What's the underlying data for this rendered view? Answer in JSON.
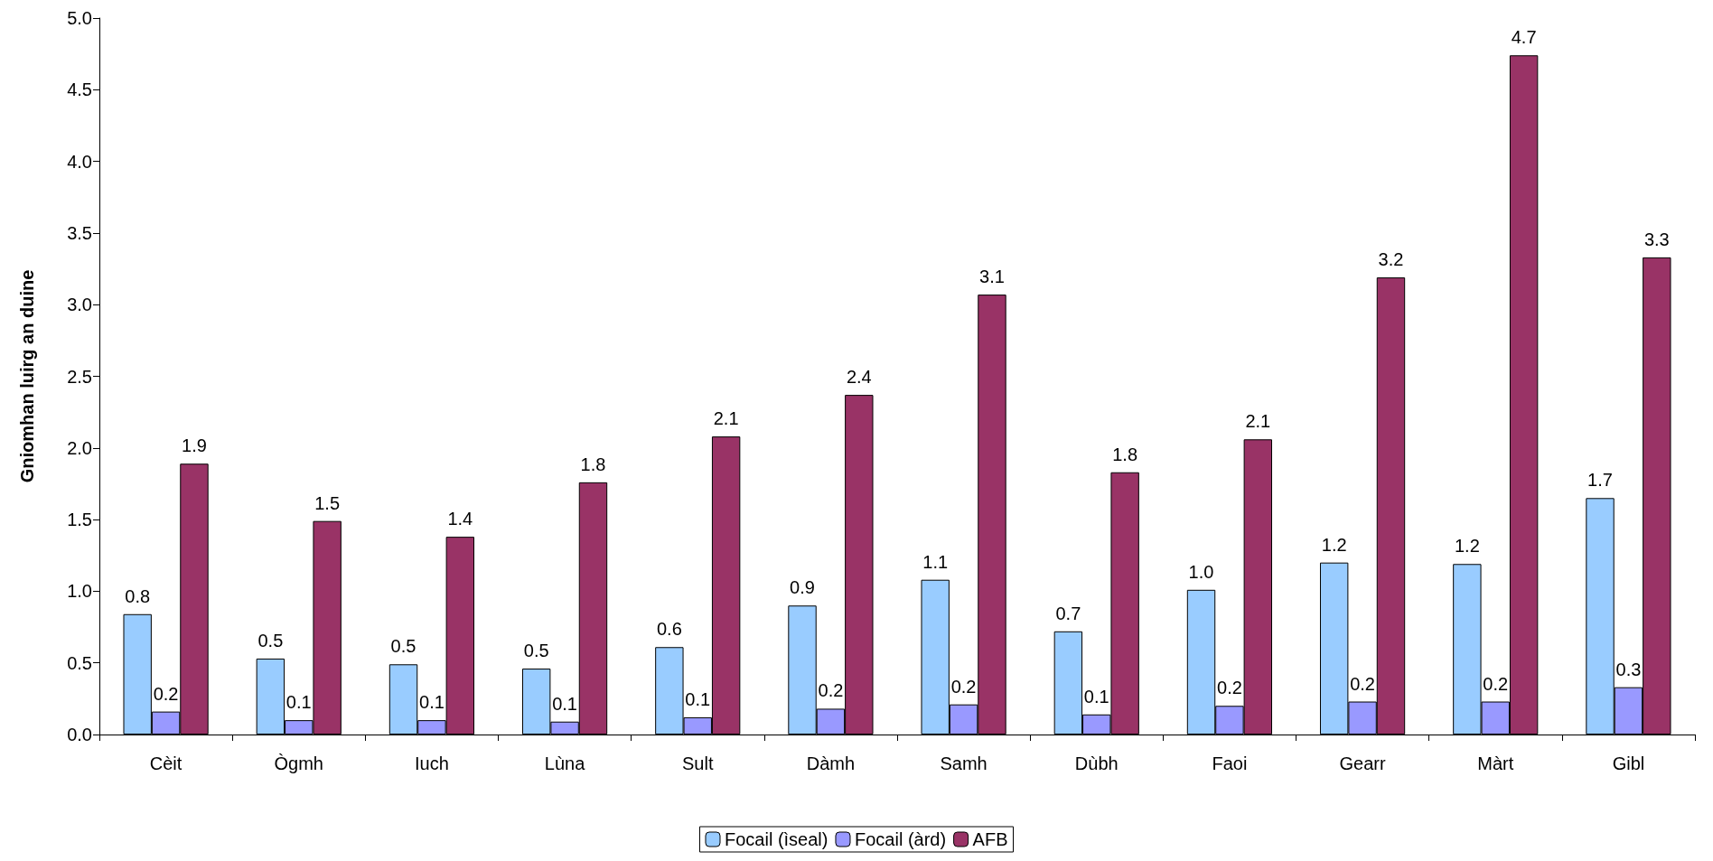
{
  "chart_data": {
    "type": "bar",
    "ylabel": "Gniomhan luirg an duine",
    "categories": [
      "Cèit",
      "Ògmh",
      "Iuch",
      "Lùna",
      "Sult",
      "Dàmh",
      "Samh",
      "Dùbh",
      "Faoi",
      "Gearr",
      "Màrt",
      "Gibl"
    ],
    "series": [
      {
        "name": "Focail (ìseal)",
        "color": "#99ccff",
        "values": [
          0.84,
          0.53,
          0.49,
          0.46,
          0.61,
          0.9,
          1.08,
          0.72,
          1.01,
          1.2,
          1.19,
          1.65
        ],
        "value_labels": [
          "0.8",
          "0.5",
          "0.5",
          "0.5",
          "0.6",
          "0.9",
          "1.1",
          "0.7",
          "1.0",
          "1.2",
          "1.2",
          "1.7"
        ]
      },
      {
        "name": "Focail (àrd)",
        "color": "#9999ff",
        "values": [
          0.16,
          0.1,
          0.1,
          0.09,
          0.12,
          0.18,
          0.21,
          0.14,
          0.2,
          0.23,
          0.23,
          0.33
        ],
        "value_labels": [
          "0.2",
          "0.1",
          "0.1",
          "0.1",
          "0.1",
          "0.2",
          "0.2",
          "0.1",
          "0.2",
          "0.2",
          "0.2",
          "0.3"
        ]
      },
      {
        "name": "AFB",
        "color": "#993366",
        "values": [
          1.89,
          1.49,
          1.38,
          1.76,
          2.08,
          2.37,
          3.07,
          1.83,
          2.06,
          3.19,
          4.74,
          3.33
        ],
        "value_labels": [
          "1.9",
          "1.5",
          "1.4",
          "1.8",
          "2.1",
          "2.4",
          "3.1",
          "1.8",
          "2.1",
          "3.2",
          "4.7",
          "3.3"
        ]
      }
    ],
    "ylim": [
      0,
      5
    ],
    "yticks": [
      {
        "value": 0,
        "label": "0.0"
      },
      {
        "value": 0.5,
        "label": "0.5"
      },
      {
        "value": 1,
        "label": "1.0"
      },
      {
        "value": 1.5,
        "label": "1.5"
      },
      {
        "value": 2,
        "label": "2.0"
      },
      {
        "value": 2.5,
        "label": "2.5"
      },
      {
        "value": 3,
        "label": "3.0"
      },
      {
        "value": 3.5,
        "label": "3.5"
      },
      {
        "value": 4,
        "label": "4.0"
      },
      {
        "value": 4.5,
        "label": "4.5"
      },
      {
        "value": 5,
        "label": "5.0"
      }
    ],
    "grid": false,
    "legend": "bottom"
  }
}
